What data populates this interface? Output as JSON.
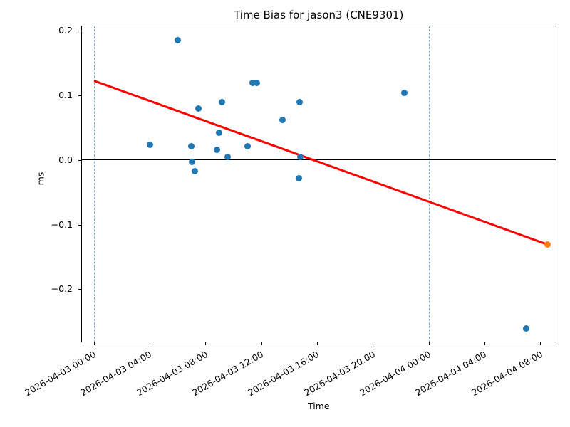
{
  "chart_data": {
    "type": "scatter",
    "title": "Time Bias for jason3 (CNE9301)",
    "xlabel": "Time",
    "ylabel": "ms",
    "xlim_hours": [
      -0.93,
      33.16
    ],
    "ylim": [
      -0.282,
      0.208
    ],
    "x_epoch": "2026-04-03 00:00",
    "grid": false,
    "legend": "none",
    "colors": {
      "point": "#1f77b4",
      "latest_point": "#ff7f0e",
      "trend_line": "#ff0000",
      "zero_line": "#000000",
      "day_line": "#79add2",
      "spine": "#000000"
    },
    "x_ticks": [
      {
        "t_hours": 0,
        "label": "2026-04-03 00:00"
      },
      {
        "t_hours": 4,
        "label": "2026-04-03 04:00"
      },
      {
        "t_hours": 8,
        "label": "2026-04-03 08:00"
      },
      {
        "t_hours": 12,
        "label": "2026-04-03 12:00"
      },
      {
        "t_hours": 16,
        "label": "2026-04-03 16:00"
      },
      {
        "t_hours": 20,
        "label": "2026-04-03 20:00"
      },
      {
        "t_hours": 24,
        "label": "2026-04-04 00:00"
      },
      {
        "t_hours": 28,
        "label": "2026-04-04 04:00"
      },
      {
        "t_hours": 32,
        "label": "2026-04-04 08:00"
      }
    ],
    "y_ticks": [
      {
        "value": 0.2,
        "label": "0.2"
      },
      {
        "value": 0.1,
        "label": "0.1"
      },
      {
        "value": 0.0,
        "label": "0.0"
      },
      {
        "value": -0.1,
        "label": "−0.1"
      },
      {
        "value": -0.2,
        "label": "−0.2"
      }
    ],
    "vlines": [
      {
        "t_hours": 0,
        "time": "2026-04-03 00:00",
        "style": "dashed"
      },
      {
        "t_hours": 24,
        "time": "2026-04-04 00:00",
        "style": "dashed"
      }
    ],
    "zero_line": {
      "ms": 0.0
    },
    "series": [
      {
        "name": "time-bias-points",
        "marker_name": "data-point",
        "color": "#1f77b4",
        "points": [
          {
            "t_hours": 4.0,
            "time": "2026-04-03 04:00",
            "ms": 0.023
          },
          {
            "t_hours": 6.0,
            "time": "2026-04-03 06:00",
            "ms": 0.185
          },
          {
            "t_hours": 7.0,
            "time": "2026-04-03 07:00",
            "ms": 0.021
          },
          {
            "t_hours": 7.05,
            "time": "2026-04-03 07:03",
            "ms": -0.003
          },
          {
            "t_hours": 7.25,
            "time": "2026-04-03 07:15",
            "ms": -0.018
          },
          {
            "t_hours": 7.5,
            "time": "2026-04-03 07:30",
            "ms": 0.079
          },
          {
            "t_hours": 8.8,
            "time": "2026-04-03 08:48",
            "ms": 0.015
          },
          {
            "t_hours": 9.0,
            "time": "2026-04-03 09:00",
            "ms": 0.042
          },
          {
            "t_hours": 9.2,
            "time": "2026-04-03 09:12",
            "ms": 0.089
          },
          {
            "t_hours": 9.6,
            "time": "2026-04-03 09:36",
            "ms": 0.004
          },
          {
            "t_hours": 11.0,
            "time": "2026-04-03 11:00",
            "ms": 0.021
          },
          {
            "t_hours": 11.4,
            "time": "2026-04-03 11:24",
            "ms": 0.119
          },
          {
            "t_hours": 11.7,
            "time": "2026-04-03 11:42",
            "ms": 0.119
          },
          {
            "t_hours": 13.5,
            "time": "2026-04-03 13:30",
            "ms": 0.062
          },
          {
            "t_hours": 14.7,
            "time": "2026-04-03 14:42",
            "ms": -0.029
          },
          {
            "t_hours": 14.75,
            "time": "2026-04-03 14:45",
            "ms": 0.089
          },
          {
            "t_hours": 14.8,
            "time": "2026-04-03 14:48",
            "ms": 0.005
          },
          {
            "t_hours": 22.25,
            "time": "2026-04-03 22:15",
            "ms": 0.104
          },
          {
            "t_hours": 31.0,
            "time": "2026-04-04 07:00",
            "ms": -0.261
          }
        ]
      },
      {
        "name": "latest-bias-point",
        "marker_name": "latest-data-point",
        "color": "#ff7f0e",
        "points": [
          {
            "t_hours": 32.5,
            "time": "2026-04-04 08:30",
            "ms": -0.131
          }
        ]
      }
    ],
    "trend_line": {
      "color": "#ff0000",
      "from": {
        "t_hours": 0.0,
        "ms": 0.122
      },
      "to": {
        "t_hours": 32.5,
        "ms": -0.131
      }
    }
  }
}
